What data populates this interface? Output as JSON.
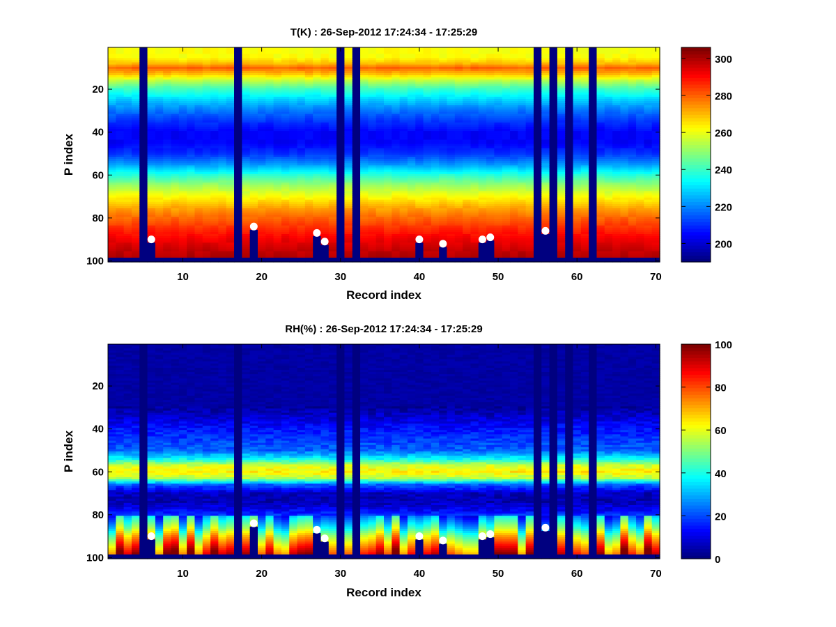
{
  "figure": {
    "type": "heatmap-pair"
  },
  "chart_data": [
    {
      "type": "heatmap",
      "title": "T(K) : 26-Sep-2012 17:24:34 - 17:25:29",
      "xlabel": "Record index",
      "ylabel": "P index",
      "xlim": [
        0.5,
        70.5
      ],
      "ylim": [
        0.5,
        100.5
      ],
      "y_reversed": true,
      "x_ticks": [
        10,
        20,
        30,
        40,
        50,
        60,
        70
      ],
      "y_ticks": [
        20,
        40,
        60,
        80,
        100
      ],
      "colorbar": {
        "colormap": "jet",
        "clim": [
          190,
          306
        ],
        "ticks": [
          200,
          220,
          240,
          260,
          280,
          300
        ]
      },
      "missing_records": [
        5,
        17,
        30,
        32,
        55,
        57,
        59,
        62
      ],
      "bottom_missing_from_p": 98,
      "profile_P_vs_T": [
        [
          1,
          262
        ],
        [
          5,
          262
        ],
        [
          8,
          270
        ],
        [
          10,
          280
        ],
        [
          13,
          270
        ],
        [
          16,
          255
        ],
        [
          20,
          240
        ],
        [
          25,
          228
        ],
        [
          30,
          218
        ],
        [
          35,
          210
        ],
        [
          40,
          204
        ],
        [
          45,
          204
        ],
        [
          50,
          210
        ],
        [
          55,
          222
        ],
        [
          60,
          238
        ],
        [
          65,
          252
        ],
        [
          70,
          262
        ],
        [
          75,
          272
        ],
        [
          80,
          280
        ],
        [
          85,
          287
        ],
        [
          90,
          293
        ],
        [
          95,
          298
        ],
        [
          98,
          300
        ]
      ],
      "surface_markers": [
        {
          "record": 6,
          "p": 90
        },
        {
          "record": 19,
          "p": 84
        },
        {
          "record": 27,
          "p": 87
        },
        {
          "record": 28,
          "p": 91
        },
        {
          "record": 40,
          "p": 90
        },
        {
          "record": 43,
          "p": 92
        },
        {
          "record": 48,
          "p": 90
        },
        {
          "record": 49,
          "p": 89
        },
        {
          "record": 56,
          "p": 86
        }
      ]
    },
    {
      "type": "heatmap",
      "title": "RH(%) : 26-Sep-2012 17:24:34 - 17:25:29",
      "xlabel": "Record index",
      "ylabel": "P index",
      "xlim": [
        0.5,
        70.5
      ],
      "ylim": [
        0.5,
        100.5
      ],
      "y_reversed": true,
      "x_ticks": [
        10,
        20,
        30,
        40,
        50,
        60,
        70
      ],
      "y_ticks": [
        20,
        40,
        60,
        80,
        100
      ],
      "colorbar": {
        "colormap": "jet",
        "clim": [
          0,
          100
        ],
        "ticks": [
          0,
          20,
          40,
          60,
          80,
          100
        ]
      },
      "missing_records": [
        5,
        17,
        30,
        32,
        55,
        57,
        59,
        62
      ],
      "bottom_missing_from_p": 98,
      "profile_P_vs_RH": [
        [
          1,
          3
        ],
        [
          30,
          3
        ],
        [
          35,
          8
        ],
        [
          40,
          14
        ],
        [
          45,
          18
        ],
        [
          50,
          22
        ],
        [
          54,
          38
        ],
        [
          57,
          58
        ],
        [
          60,
          64
        ],
        [
          63,
          55
        ],
        [
          66,
          22
        ],
        [
          70,
          6
        ],
        [
          74,
          5
        ],
        [
          78,
          12
        ],
        [
          82,
          22
        ],
        [
          86,
          32
        ],
        [
          90,
          45
        ],
        [
          94,
          55
        ],
        [
          98,
          65
        ]
      ],
      "surface_markers": [
        {
          "record": 6,
          "p": 90
        },
        {
          "record": 19,
          "p": 84
        },
        {
          "record": 27,
          "p": 87
        },
        {
          "record": 28,
          "p": 91
        },
        {
          "record": 40,
          "p": 90
        },
        {
          "record": 43,
          "p": 92
        },
        {
          "record": 48,
          "p": 90
        },
        {
          "record": 49,
          "p": 89
        },
        {
          "record": 56,
          "p": 86
        }
      ]
    }
  ]
}
